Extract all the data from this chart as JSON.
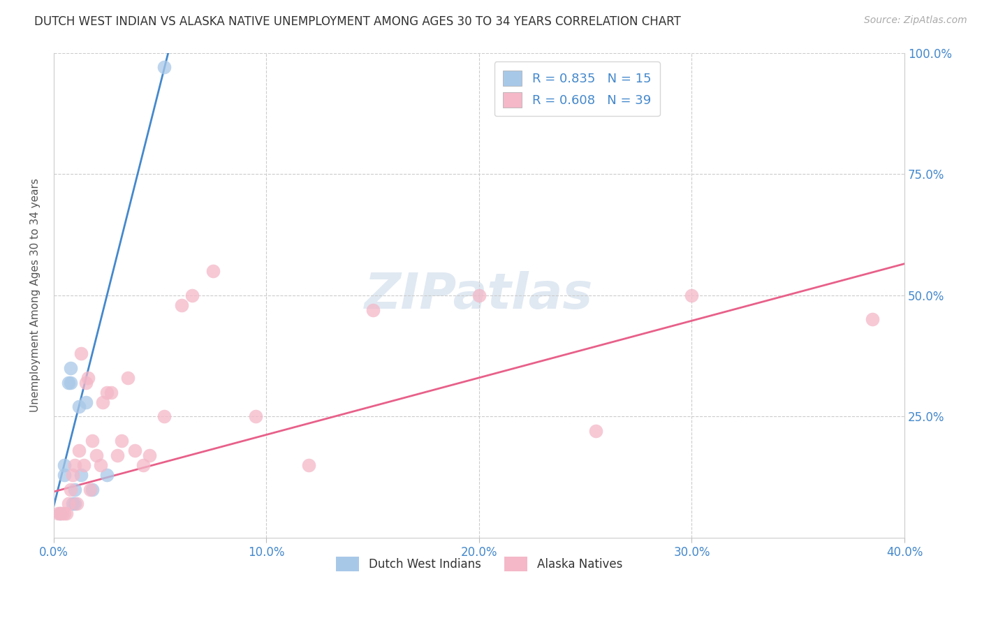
{
  "title": "DUTCH WEST INDIAN VS ALASKA NATIVE UNEMPLOYMENT AMONG AGES 30 TO 34 YEARS CORRELATION CHART",
  "source": "Source: ZipAtlas.com",
  "ylabel": "Unemployment Among Ages 30 to 34 years",
  "xlim": [
    0.0,
    0.4
  ],
  "ylim": [
    0.0,
    1.0
  ],
  "xtick_labels": [
    "0.0%",
    "10.0%",
    "20.0%",
    "30.0%",
    "40.0%"
  ],
  "xtick_values": [
    0.0,
    0.1,
    0.2,
    0.3,
    0.4
  ],
  "ytick_labels": [
    "25.0%",
    "50.0%",
    "75.0%",
    "100.0%"
  ],
  "ytick_values": [
    0.25,
    0.5,
    0.75,
    1.0
  ],
  "background_color": "#ffffff",
  "watermark_text": "ZIPatlas",
  "legend1_label": "R = 0.835   N = 15",
  "legend2_label": "R = 0.608   N = 39",
  "legend_bottom_1": "Dutch West Indians",
  "legend_bottom_2": "Alaska Natives",
  "blue_scatter_color": "#a8c8e8",
  "pink_scatter_color": "#f4b8c8",
  "blue_line_color": "#4488cc",
  "pink_line_color": "#e8608a",
  "dutch_x": [
    0.003,
    0.005,
    0.005,
    0.007,
    0.008,
    0.008,
    0.009,
    0.01,
    0.01,
    0.012,
    0.013,
    0.015,
    0.018,
    0.025,
    0.052
  ],
  "dutch_y": [
    0.05,
    0.13,
    0.15,
    0.32,
    0.32,
    0.35,
    0.07,
    0.07,
    0.1,
    0.27,
    0.13,
    0.28,
    0.1,
    0.13,
    0.97
  ],
  "alaska_x": [
    0.002,
    0.003,
    0.004,
    0.005,
    0.006,
    0.007,
    0.008,
    0.009,
    0.01,
    0.011,
    0.012,
    0.013,
    0.014,
    0.015,
    0.016,
    0.017,
    0.018,
    0.02,
    0.022,
    0.023,
    0.025,
    0.027,
    0.03,
    0.032,
    0.035,
    0.038,
    0.042,
    0.045,
    0.052,
    0.06,
    0.065,
    0.075,
    0.095,
    0.12,
    0.15,
    0.2,
    0.255,
    0.3,
    0.385
  ],
  "alaska_y": [
    0.05,
    0.05,
    0.05,
    0.05,
    0.05,
    0.07,
    0.1,
    0.13,
    0.15,
    0.07,
    0.18,
    0.38,
    0.15,
    0.32,
    0.33,
    0.1,
    0.2,
    0.17,
    0.15,
    0.28,
    0.3,
    0.3,
    0.17,
    0.2,
    0.33,
    0.18,
    0.15,
    0.17,
    0.25,
    0.48,
    0.5,
    0.55,
    0.25,
    0.15,
    0.47,
    0.5,
    0.22,
    0.5,
    0.45
  ],
  "blue_line_x0": 0.0,
  "blue_line_y0": 0.065,
  "blue_line_x1": 0.055,
  "blue_line_y1": 1.02,
  "pink_line_x0": 0.0,
  "pink_line_y0": 0.095,
  "pink_line_x1": 0.4,
  "pink_line_y1": 0.565
}
